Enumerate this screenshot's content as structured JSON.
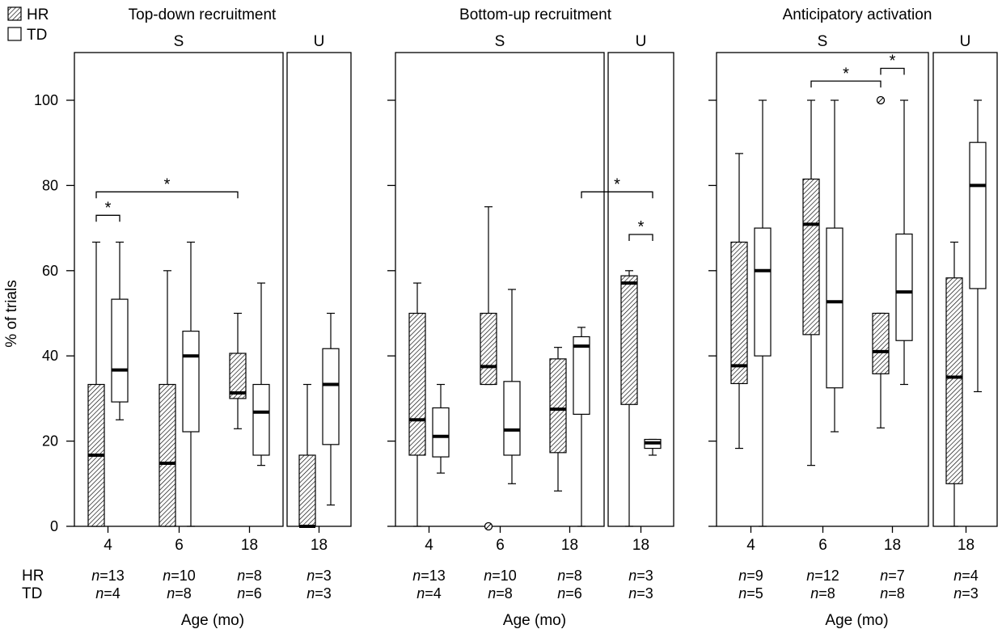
{
  "legend": [
    {
      "label": "HR",
      "pattern": "hatched"
    },
    {
      "label": "TD",
      "pattern": "open"
    }
  ],
  "y_axis": {
    "label": "% of trials",
    "ticks": [
      0,
      20,
      40,
      60,
      80,
      100
    ],
    "ylim": [
      0,
      110
    ]
  },
  "x_label": "Age (mo)",
  "row_labels": {
    "hr": "HR",
    "td": "TD"
  },
  "colors": {
    "hatch": "#000000",
    "box_fill_td": "#ffffff"
  },
  "chart_data": [
    {
      "type": "boxplot",
      "title": "Top-down recruitment",
      "groups": [
        {
          "label": "S",
          "ages": [
            {
              "age": "4",
              "hr_n": "n=13",
              "td_n": "n=4",
              "hr": {
                "min": 0,
                "q1": 0,
                "median": 16.7,
                "q3": 33.3,
                "max": 66.7,
                "outliers": []
              },
              "td": {
                "min": 25,
                "q1": 29.2,
                "median": 36.7,
                "q3": 53.3,
                "max": 66.7,
                "outliers": []
              }
            },
            {
              "age": "6",
              "hr_n": "n=10",
              "td_n": "n=8",
              "hr": {
                "min": 0,
                "q1": 0,
                "median": 14.8,
                "q3": 33.3,
                "max": 60,
                "outliers": []
              },
              "td": {
                "min": 0,
                "q1": 22.2,
                "median": 40,
                "q3": 45.8,
                "max": 66.7,
                "outliers": []
              }
            },
            {
              "age": "18",
              "hr_n": "n=8",
              "td_n": "n=6",
              "hr": {
                "min": 22.9,
                "q1": 30,
                "median": 31.3,
                "q3": 40.6,
                "max": 50,
                "outliers": []
              },
              "td": {
                "min": 14.3,
                "q1": 16.7,
                "median": 26.8,
                "q3": 33.3,
                "max": 57.1,
                "outliers": []
              }
            }
          ]
        },
        {
          "label": "U",
          "ages": [
            {
              "age": "18",
              "hr_n": "n=3",
              "td_n": "n=3",
              "hr": {
                "min": 0,
                "q1": 0,
                "median": 0,
                "q3": 16.7,
                "max": 33.3,
                "outliers": []
              },
              "td": {
                "min": 5,
                "q1": 19.2,
                "median": 33.3,
                "q3": 41.7,
                "max": 50,
                "outliers": []
              }
            }
          ]
        }
      ],
      "significance": [
        {
          "from": [
            0,
            0,
            "hr"
          ],
          "to": [
            0,
            0,
            "td"
          ],
          "y": 73,
          "label": "*"
        },
        {
          "from": [
            0,
            0,
            "hr"
          ],
          "to": [
            0,
            2,
            "hr"
          ],
          "y": 78.5,
          "label": "*"
        }
      ]
    },
    {
      "type": "boxplot",
      "title": "Bottom-up recruitment",
      "groups": [
        {
          "label": "S",
          "ages": [
            {
              "age": "4",
              "hr_n": "n=13",
              "td_n": "n=4",
              "hr": {
                "min": 0,
                "q1": 16.7,
                "median": 25,
                "q3": 50,
                "max": 57.1,
                "outliers": []
              },
              "td": {
                "min": 12.5,
                "q1": 16.3,
                "median": 21.1,
                "q3": 27.8,
                "max": 33.3,
                "outliers": []
              }
            },
            {
              "age": "6",
              "hr_n": "n=10",
              "td_n": "n=8",
              "hr": {
                "min": 33.3,
                "q1": 33.3,
                "median": 37.5,
                "q3": 50,
                "max": 75,
                "outliers": [
                  0
                ]
              },
              "td": {
                "min": 10,
                "q1": 16.7,
                "median": 22.6,
                "q3": 34,
                "max": 55.6,
                "outliers": []
              }
            },
            {
              "age": "18",
              "hr_n": "n=8",
              "td_n": "n=6",
              "hr": {
                "min": 8.3,
                "q1": 17.3,
                "median": 27.5,
                "q3": 39.3,
                "max": 42,
                "outliers": []
              },
              "td": {
                "min": 0,
                "q1": 26.3,
                "median": 42.3,
                "q3": 44.5,
                "max": 46.7,
                "outliers": []
              }
            }
          ]
        },
        {
          "label": "U",
          "ages": [
            {
              "age": "18",
              "hr_n": "n=3",
              "td_n": "n=3",
              "hr": {
                "min": 0,
                "q1": 28.6,
                "median": 57.1,
                "q3": 58.8,
                "max": 60,
                "outliers": []
              },
              "td": {
                "min": 16.7,
                "q1": 18.3,
                "median": 19.6,
                "q3": 20.4,
                "max": 20.4,
                "outliers": []
              }
            }
          ]
        }
      ],
      "significance": [
        {
          "from": [
            1,
            0,
            "hr"
          ],
          "to": [
            1,
            0,
            "td"
          ],
          "y": 68.5,
          "label": "*"
        },
        {
          "from": [
            0,
            2,
            "td"
          ],
          "to": [
            1,
            0,
            "td"
          ],
          "y": 78.5,
          "label": "*"
        }
      ]
    },
    {
      "type": "boxplot",
      "title": "Anticipatory activation",
      "groups": [
        {
          "label": "S",
          "ages": [
            {
              "age": "4",
              "hr_n": "n=9",
              "td_n": "n=5",
              "hr": {
                "min": 18.3,
                "q1": 33.5,
                "median": 37.7,
                "q3": 66.7,
                "max": 87.5,
                "outliers": []
              },
              "td": {
                "min": 0,
                "q1": 40,
                "median": 60,
                "q3": 70,
                "max": 100,
                "outliers": []
              }
            },
            {
              "age": "6",
              "hr_n": "n=12",
              "td_n": "n=8",
              "hr": {
                "min": 14.3,
                "q1": 45,
                "median": 70.9,
                "q3": 81.5,
                "max": 100,
                "outliers": []
              },
              "td": {
                "min": 22.2,
                "q1": 32.5,
                "median": 52.7,
                "q3": 70,
                "max": 100,
                "outliers": []
              }
            },
            {
              "age": "18",
              "hr_n": "n=7",
              "td_n": "n=8",
              "hr": {
                "min": 23.1,
                "q1": 35.8,
                "median": 41,
                "q3": 50,
                "max": 50,
                "outliers": [
                  100
                ]
              },
              "td": {
                "min": 33.3,
                "q1": 43.6,
                "median": 55,
                "q3": 68.6,
                "max": 100,
                "outliers": []
              }
            }
          ]
        },
        {
          "label": "U",
          "ages": [
            {
              "age": "18",
              "hr_n": "n=4",
              "td_n": "n=3",
              "hr": {
                "min": 0,
                "q1": 10,
                "median": 35,
                "q3": 58.3,
                "max": 66.7,
                "outliers": []
              },
              "td": {
                "min": 31.6,
                "q1": 55.8,
                "median": 80,
                "q3": 90.1,
                "max": 100,
                "outliers": []
              }
            }
          ]
        }
      ],
      "significance": [
        {
          "from": [
            0,
            1,
            "hr"
          ],
          "to": [
            0,
            2,
            "hr"
          ],
          "y": 104.5,
          "label": "*"
        },
        {
          "from": [
            0,
            2,
            "hr"
          ],
          "to": [
            0,
            2,
            "td"
          ],
          "y": 107.5,
          "label": "*"
        }
      ]
    }
  ]
}
